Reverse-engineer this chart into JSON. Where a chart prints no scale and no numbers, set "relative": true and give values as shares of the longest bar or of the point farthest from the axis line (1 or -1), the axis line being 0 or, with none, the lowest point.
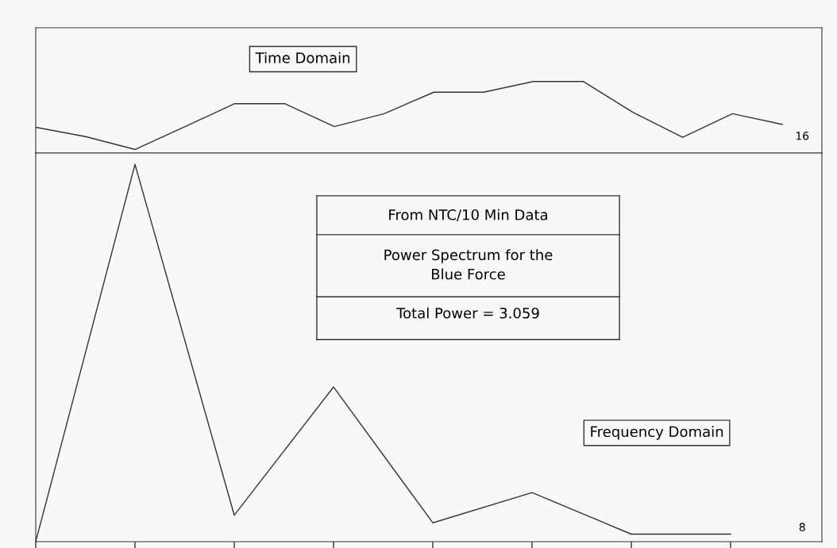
{
  "chart_data": [
    {
      "type": "line",
      "relative": true,
      "categories": [
        null,
        null,
        null,
        null,
        null,
        null,
        null,
        null,
        null,
        null,
        null,
        null,
        null,
        null,
        null,
        null
      ],
      "series": [
        {
          "color": "#333333",
          "values": [
            0.36,
            0.23,
            0.05,
            0.37,
            0.69,
            0.69,
            0.37,
            0.55,
            0.85,
            0.85,
            1,
            1,
            0.57,
            0.22,
            0.55,
            0.4
          ]
        }
      ],
      "annotations": [
        "Time Domain",
        "16"
      ],
      "marker": "none",
      "line_style": "solid",
      "grid": false,
      "legend": false
    },
    {
      "type": "line",
      "relative": true,
      "categories": [
        null,
        null,
        null,
        null,
        null,
        null,
        null,
        null
      ],
      "series": [
        {
          "color": "#333333",
          "values": [
            0,
            1,
            0.07,
            0.41,
            0.05,
            0.13,
            0.02,
            0.02
          ]
        }
      ],
      "annotations": [
        "From NTC/10 Min Data",
        "Power Spectrum for the\nBlue Force",
        "Total Power = 3.059",
        "Frequency Domain",
        "8"
      ],
      "marker": "none",
      "line_style": "solid",
      "grid": false,
      "legend": false
    }
  ]
}
